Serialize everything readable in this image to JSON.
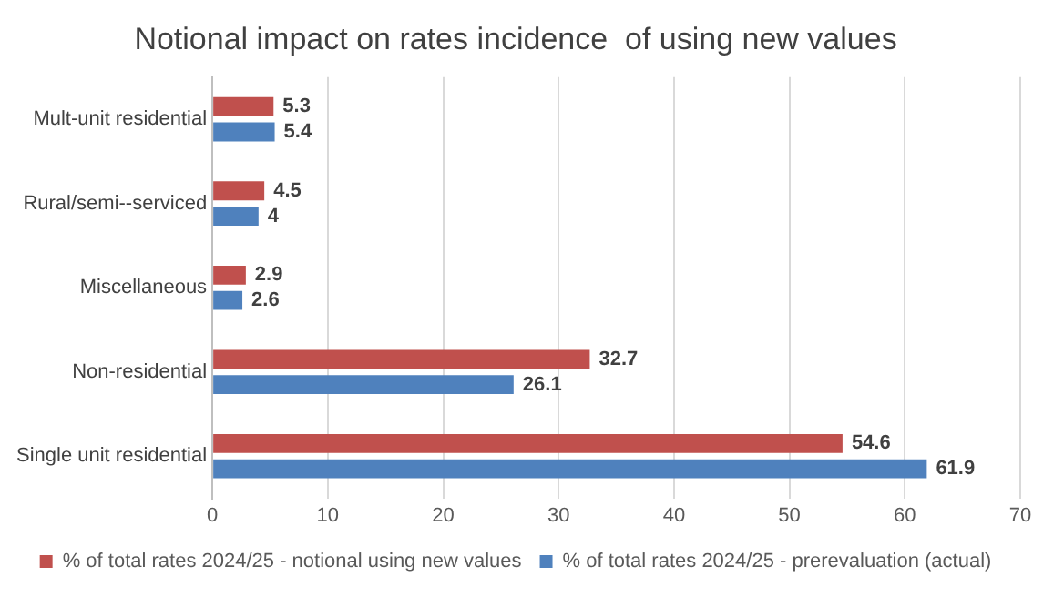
{
  "chart_data": {
    "type": "bar",
    "orientation": "horizontal",
    "title": "Notional impact on rates incidence  of using new values",
    "categories": [
      "Mult-unit residential",
      "Rural/semi--serviced",
      "Miscellaneous",
      "Non-residential",
      "Single unit residential"
    ],
    "series": [
      {
        "name": "% of total rates 2024/25 - notional using new values",
        "color": "#c0504d",
        "values": [
          5.3,
          4.5,
          2.9,
          32.7,
          54.6
        ]
      },
      {
        "name": "% of total rates 2024/25 - prerevaluation (actual)",
        "color": "#4f81bd",
        "values": [
          5.4,
          4,
          2.6,
          26.1,
          61.9
        ]
      }
    ],
    "xlim": [
      0,
      70
    ],
    "xticks": [
      0,
      10,
      20,
      30,
      40,
      50,
      60,
      70
    ],
    "grid": "x",
    "legend": "bottom",
    "data_labels": true
  }
}
